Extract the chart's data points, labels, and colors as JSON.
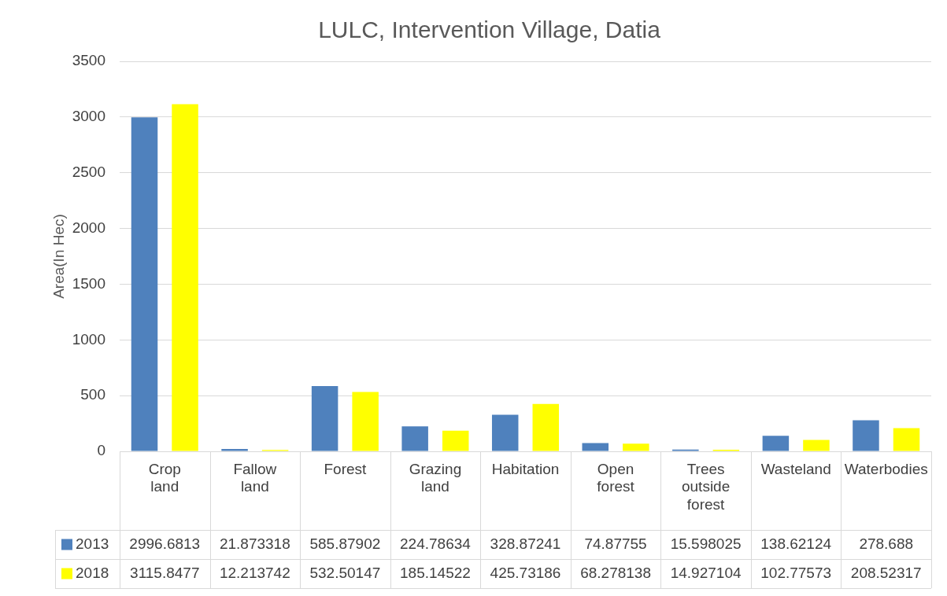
{
  "chart_data": {
    "type": "bar",
    "title": "LULC, Intervention Village, Datia",
    "ylabel": "Area(In Hec)",
    "categories": [
      "Crop land",
      "Fallow land",
      "Forest",
      "Grazing land",
      "Habitation",
      "Open forest",
      "Trees outside forest",
      "Wasteland",
      "Waterbodies"
    ],
    "series": [
      {
        "name": "2013",
        "color": "#4f81bd",
        "values": [
          2996.6813,
          21.873318,
          585.87902,
          224.78634,
          328.87241,
          74.87755,
          15.598025,
          138.62124,
          278.688
        ]
      },
      {
        "name": "2018",
        "color": "#ffff00",
        "values": [
          3115.8477,
          12.213742,
          532.50147,
          185.14522,
          425.73186,
          68.278138,
          14.927104,
          102.77573,
          208.52317
        ]
      }
    ],
    "ylim": [
      0,
      3500
    ],
    "yticks": [
      0,
      500,
      1000,
      1500,
      2000,
      2500,
      3000,
      3500
    ],
    "grid": "y",
    "legend": "bottom",
    "data_labels": true
  }
}
